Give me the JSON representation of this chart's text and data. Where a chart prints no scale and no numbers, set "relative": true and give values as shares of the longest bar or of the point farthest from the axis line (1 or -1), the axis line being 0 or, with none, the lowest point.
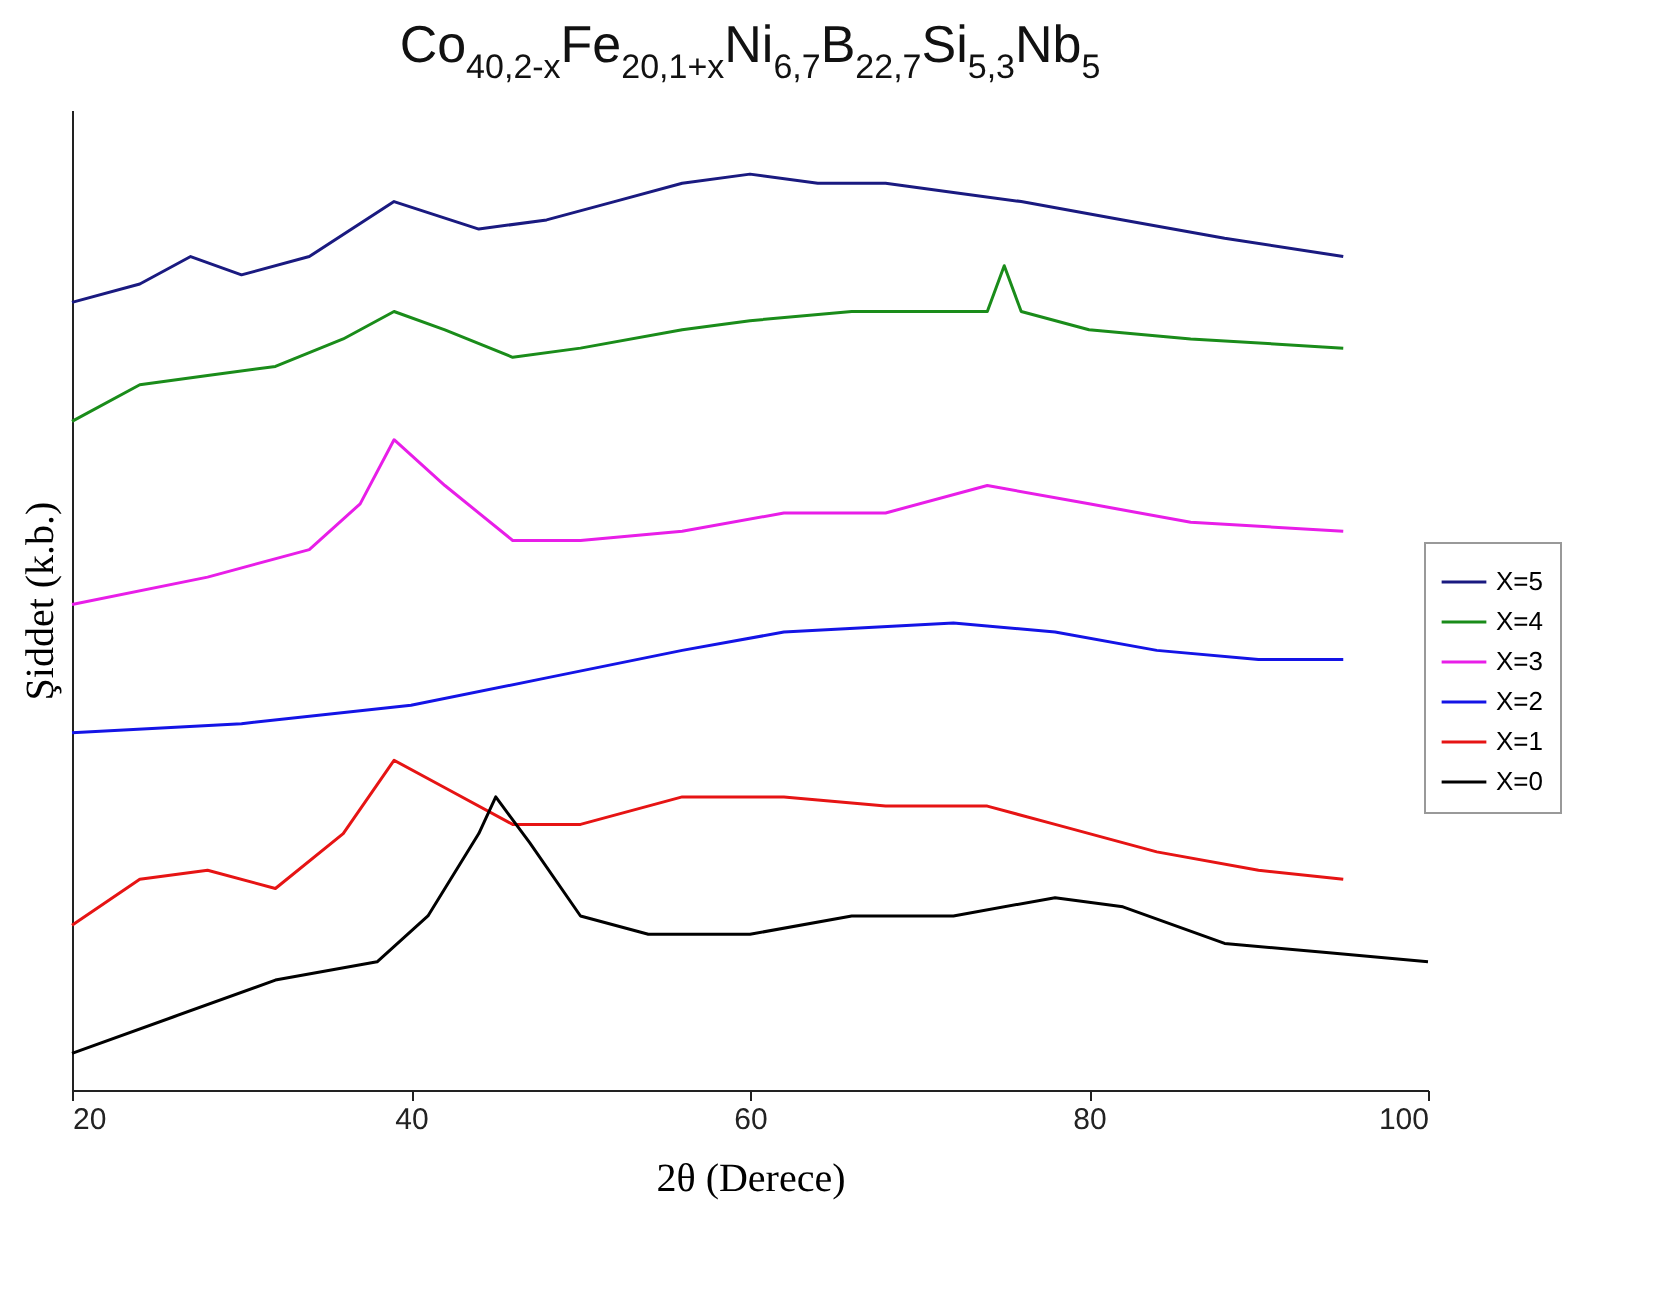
{
  "chart_data": {
    "type": "line",
    "title": "Co$_{40,2-x}$Fe$_{20,1+x}$Ni$_{6,7}$B$_{22,7}$Si$_{5,3}$Nb$_{5}$",
    "xlabel": "2θ (Derece)",
    "ylabel": "Şiddet (k.b.)",
    "relative": true,
    "xlim": [
      20,
      100
    ],
    "xticks": [
      20,
      40,
      60,
      80,
      100
    ],
    "grid": false,
    "legend": "right",
    "marker": "none",
    "line_style": "solid",
    "series": [
      {
        "name": "X=5",
        "color": "#1a1a80",
        "x": [
          20,
          24,
          27,
          30,
          34,
          39,
          44,
          48,
          52,
          56,
          60,
          64,
          68,
          72,
          76,
          82,
          88,
          95
        ],
        "values": [
          0.86,
          0.88,
          0.91,
          0.89,
          0.91,
          0.97,
          0.94,
          0.95,
          0.97,
          0.99,
          1.0,
          0.99,
          0.99,
          0.98,
          0.97,
          0.95,
          0.93,
          0.91
        ]
      },
      {
        "name": "X=4",
        "color": "#1a8c1a",
        "x": [
          20,
          24,
          28,
          32,
          36,
          39,
          42,
          46,
          50,
          56,
          60,
          66,
          72,
          74,
          75,
          76,
          80,
          86,
          95
        ],
        "values": [
          0.73,
          0.77,
          0.78,
          0.79,
          0.82,
          0.85,
          0.83,
          0.8,
          0.81,
          0.83,
          0.84,
          0.85,
          0.85,
          0.85,
          0.9,
          0.85,
          0.83,
          0.82,
          0.81
        ]
      },
      {
        "name": "X=3",
        "color": "#e81ee8",
        "x": [
          20,
          28,
          34,
          37,
          39,
          42,
          46,
          50,
          56,
          62,
          68,
          74,
          80,
          86,
          95
        ],
        "values": [
          0.53,
          0.56,
          0.59,
          0.64,
          0.71,
          0.66,
          0.6,
          0.6,
          0.61,
          0.63,
          0.63,
          0.66,
          0.64,
          0.62,
          0.61
        ]
      },
      {
        "name": "X=2",
        "color": "#1414e6",
        "x": [
          20,
          30,
          40,
          48,
          56,
          62,
          72,
          78,
          84,
          90,
          95
        ],
        "values": [
          0.39,
          0.4,
          0.42,
          0.45,
          0.48,
          0.5,
          0.51,
          0.5,
          0.48,
          0.47,
          0.47
        ]
      },
      {
        "name": "X=1",
        "color": "#e61414",
        "x": [
          20,
          24,
          28,
          32,
          36,
          39,
          42,
          46,
          50,
          56,
          62,
          68,
          74,
          78,
          84,
          90,
          95
        ],
        "values": [
          0.18,
          0.23,
          0.24,
          0.22,
          0.28,
          0.36,
          0.33,
          0.29,
          0.29,
          0.32,
          0.32,
          0.31,
          0.31,
          0.29,
          0.26,
          0.24,
          0.23
        ]
      },
      {
        "name": "X=0",
        "color": "#000000",
        "x": [
          20,
          26,
          32,
          38,
          41,
          44,
          45,
          47,
          50,
          54,
          60,
          66,
          72,
          78,
          82,
          88,
          94,
          100
        ],
        "values": [
          0.04,
          0.08,
          0.12,
          0.14,
          0.19,
          0.28,
          0.32,
          0.27,
          0.19,
          0.17,
          0.17,
          0.19,
          0.19,
          0.21,
          0.2,
          0.16,
          0.15,
          0.14
        ]
      }
    ]
  }
}
